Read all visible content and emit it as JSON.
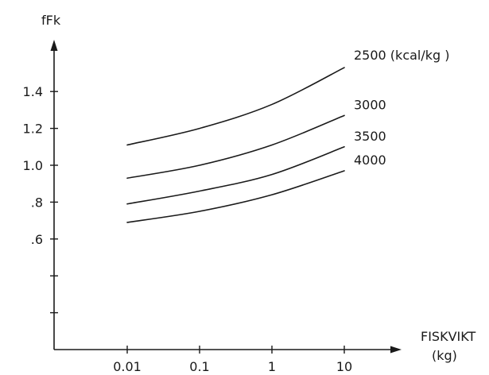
{
  "chart_data": {
    "type": "line",
    "ylabel": "fFk",
    "xlabel_line1": "FISKVIKT",
    "xlabel_line2": "(kg)",
    "x_scale": "log",
    "x_ticks": [
      0.01,
      0.1,
      1,
      10
    ],
    "x_tick_labels": [
      "0.01",
      "0.1",
      "1",
      "10"
    ],
    "y_ticks": [
      0.2,
      0.4,
      0.6,
      0.8,
      1.0,
      1.2,
      1.4
    ],
    "y_tick_labels": [
      "",
      "",
      ".6",
      ".8",
      "1.0",
      "1.2",
      "1.4"
    ],
    "ylim": [
      0.0,
      1.7
    ],
    "grid": false,
    "x": [
      0.01,
      0.1,
      1,
      10
    ],
    "series": [
      {
        "name": "2500 (kcal/kg )",
        "values": [
          1.11,
          1.2,
          1.33,
          1.53
        ]
      },
      {
        "name": "3000",
        "values": [
          0.93,
          1.0,
          1.11,
          1.27
        ]
      },
      {
        "name": "3500",
        "values": [
          0.79,
          0.86,
          0.95,
          1.1
        ]
      },
      {
        "name": "4000",
        "values": [
          0.69,
          0.75,
          0.84,
          0.97
        ]
      }
    ]
  }
}
